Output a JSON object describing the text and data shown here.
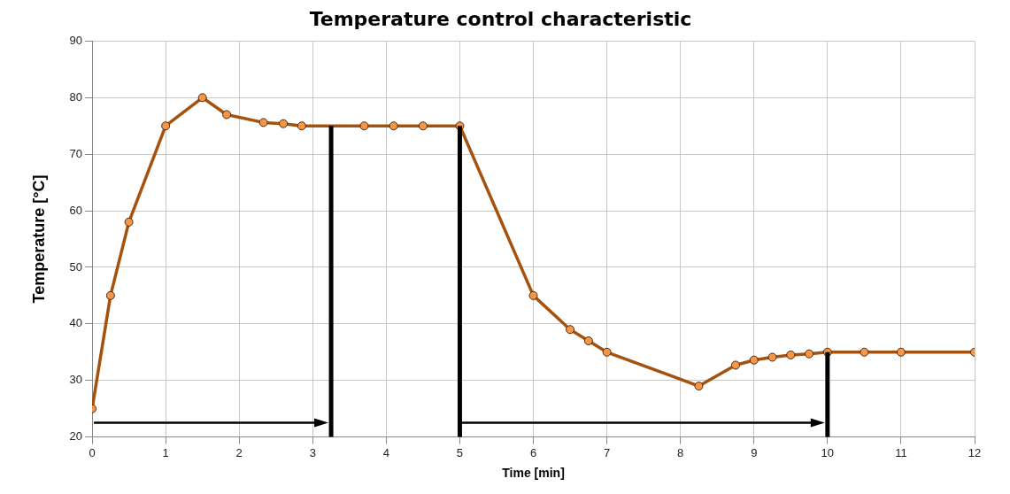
{
  "chart_data": {
    "type": "line",
    "title": "Temperature control characteristic",
    "xlabel": "Time [min]",
    "ylabel": "Temperature [°C]",
    "series": [
      {
        "color": "#a5520f",
        "x": [
          0,
          0.25,
          0.5,
          1,
          1.5,
          1.83,
          2.33,
          2.6,
          2.85,
          3.7,
          4.1,
          4.5,
          5,
          6,
          6.5,
          6.75,
          7,
          8.25,
          8.75,
          9,
          9.25,
          9.5,
          9.75,
          10,
          10.5,
          11,
          12
        ],
        "values": [
          25,
          45,
          58,
          75,
          80,
          77,
          75.6,
          75.4,
          75,
          75,
          75,
          75,
          75,
          45,
          39,
          37,
          35,
          29,
          32.7,
          33.6,
          34.1,
          34.5,
          34.7,
          35,
          35,
          35,
          35
        ]
      }
    ],
    "xlim": [
      0,
      12
    ],
    "xticks": [
      0,
      1,
      2,
      3,
      4,
      5,
      6,
      7,
      8,
      9,
      10,
      11,
      12
    ],
    "ylim": [
      20,
      90
    ],
    "yticks": [
      20,
      30,
      40,
      50,
      60,
      70,
      80,
      90
    ],
    "ref_lines": [
      {
        "axis": "x",
        "value": 3.25,
        "color": "#000000"
      },
      {
        "axis": "x",
        "value": 5,
        "color": "#000000"
      },
      {
        "axis": "x",
        "value": 10,
        "color": "#000000"
      }
    ],
    "grid": true,
    "legend": false,
    "marker": "circle",
    "line_style": "solid"
  }
}
